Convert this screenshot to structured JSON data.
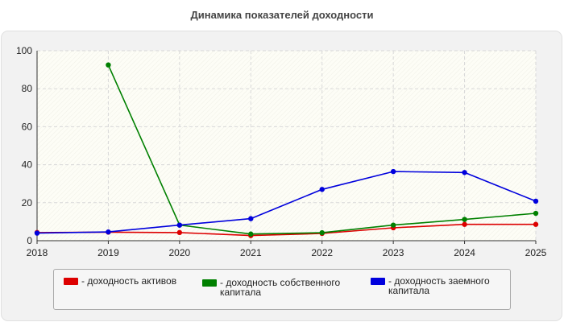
{
  "chart_data": {
    "type": "line",
    "title": "Динамика показателей доходности",
    "x": [
      "2018",
      "2019",
      "2020",
      "2021",
      "2022",
      "2023",
      "2024",
      "2025"
    ],
    "ylim": [
      0,
      100
    ],
    "yticks": [
      "0",
      "20",
      "40",
      "60",
      "80",
      "100"
    ],
    "grid": true,
    "legend_position": "bottom",
    "series": [
      {
        "name": "- доходность активов",
        "color": "#dd0000",
        "values": [
          4.3,
          4.5,
          4.3,
          2.7,
          3.8,
          6.8,
          8.6,
          8.6
        ]
      },
      {
        "name": "- доходность собственного\nкапитала",
        "color": "#008000",
        "values": [
          null,
          92.5,
          8.2,
          3.5,
          4.2,
          8.2,
          11.2,
          14.4
        ]
      },
      {
        "name": "- доходность заемного\nкапитала",
        "color": "#0000dd",
        "values": [
          4.0,
          4.6,
          8.2,
          11.6,
          27.0,
          36.4,
          35.9,
          20.8
        ]
      }
    ]
  }
}
